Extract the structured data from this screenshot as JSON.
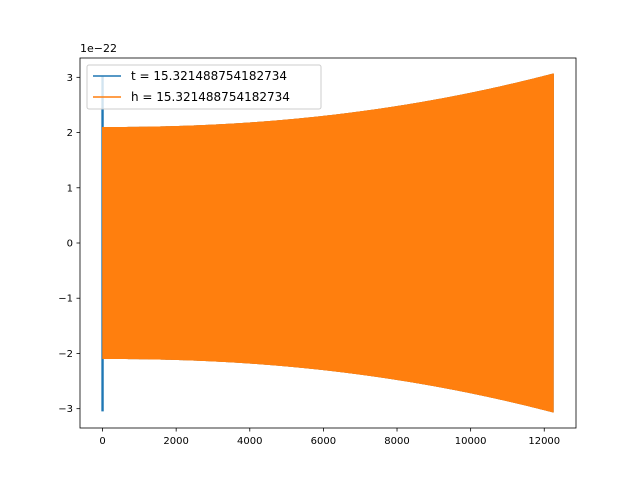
{
  "chart_data": {
    "type": "line",
    "title": "",
    "xlabel": "",
    "ylabel": "",
    "offset_text": "1e−22",
    "xlim": [
      -612.5,
      12862.5
    ],
    "ylim": [
      -3.35,
      3.35
    ],
    "x_ticks": [
      0,
      2000,
      4000,
      6000,
      8000,
      10000,
      12000
    ],
    "x_tick_labels": [
      "0",
      "2000",
      "4000",
      "6000",
      "8000",
      "10000",
      "12000"
    ],
    "y_ticks": [
      -3,
      -2,
      -1,
      0,
      1,
      2,
      3
    ],
    "y_tick_labels": [
      "−3",
      "−2",
      "−1",
      "0",
      "1",
      "2",
      "3"
    ],
    "grid": false,
    "legend_position": "upper-left",
    "series": [
      {
        "name": "t = 15.321488754182734",
        "color": "#1f77b4",
        "x_range": [
          0,
          12250
        ],
        "envelope_start": 2.1,
        "envelope_end": 3.07,
        "spike": {
          "x": 0,
          "max": 3.02,
          "min": -3.05
        }
      },
      {
        "name": "h = 15.321488754182734",
        "color": "#ff7f0e",
        "x_range": [
          0,
          12250
        ],
        "envelope_start": 2.1,
        "envelope_end": 3.07
      }
    ]
  }
}
